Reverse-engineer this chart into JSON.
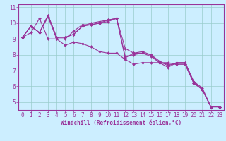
{
  "bg_color": "#cceeff",
  "line_color": "#993399",
  "grid_color": "#99cccc",
  "xlim": [
    -0.5,
    23.5
  ],
  "ylim": [
    4.5,
    11.2
  ],
  "xticks": [
    0,
    1,
    2,
    3,
    4,
    5,
    6,
    7,
    8,
    9,
    10,
    11,
    12,
    13,
    14,
    15,
    16,
    17,
    18,
    19,
    20,
    21,
    22,
    23
  ],
  "yticks": [
    5,
    6,
    7,
    8,
    9,
    10,
    11
  ],
  "xlabel": "Windchill (Refroidissement éolien,°C)",
  "series": [
    {
      "x": [
        0,
        1,
        2,
        3,
        4,
        5,
        6,
        7,
        8,
        9,
        10,
        11,
        12,
        13,
        14,
        15,
        16,
        17,
        18,
        19,
        20,
        21,
        22,
        23
      ],
      "y": [
        9.1,
        9.8,
        9.4,
        10.4,
        9.0,
        9.0,
        9.5,
        9.9,
        9.9,
        10.0,
        10.2,
        10.3,
        7.8,
        8.1,
        8.1,
        8.0,
        7.5,
        7.5,
        7.4,
        7.4,
        6.2,
        5.8,
        4.7,
        4.7
      ]
    },
    {
      "x": [
        0,
        1,
        2,
        3,
        4,
        5,
        6,
        7,
        8,
        9,
        10,
        11,
        12,
        13,
        14,
        15,
        16,
        17,
        18,
        19,
        20,
        21,
        22,
        23
      ],
      "y": [
        9.1,
        9.8,
        9.4,
        10.5,
        9.1,
        9.1,
        9.3,
        9.8,
        10.0,
        10.1,
        10.2,
        10.3,
        8.4,
        8.1,
        8.2,
        8.0,
        7.6,
        7.3,
        7.5,
        7.5,
        6.3,
        5.8,
        4.7,
        4.7
      ]
    },
    {
      "x": [
        0,
        1,
        2,
        3,
        4,
        5,
        6,
        7,
        8,
        9,
        10,
        11,
        12,
        13,
        14,
        15,
        16,
        17,
        18,
        19,
        20,
        21,
        22,
        23
      ],
      "y": [
        9.1,
        9.4,
        10.3,
        9.0,
        9.0,
        8.6,
        8.8,
        8.7,
        8.5,
        8.2,
        8.1,
        8.1,
        7.7,
        7.4,
        7.5,
        7.5,
        7.5,
        7.4,
        7.4,
        7.4,
        6.2,
        5.8,
        4.7,
        4.7
      ]
    },
    {
      "x": [
        0,
        1,
        2,
        3,
        4,
        5,
        6,
        7,
        8,
        9,
        10,
        11,
        12,
        13,
        14,
        15,
        16,
        17,
        18,
        19,
        20,
        21,
        22,
        23
      ],
      "y": [
        9.1,
        9.8,
        9.4,
        10.5,
        9.1,
        9.1,
        9.3,
        9.8,
        9.9,
        10.0,
        10.1,
        10.3,
        7.9,
        8.0,
        8.1,
        7.9,
        7.5,
        7.2,
        7.5,
        7.5,
        6.3,
        5.9,
        4.7,
        4.7
      ]
    }
  ],
  "tick_fontsize": 5.5,
  "xlabel_fontsize": 5.5,
  "marker_size": 2.0,
  "line_width": 0.8
}
